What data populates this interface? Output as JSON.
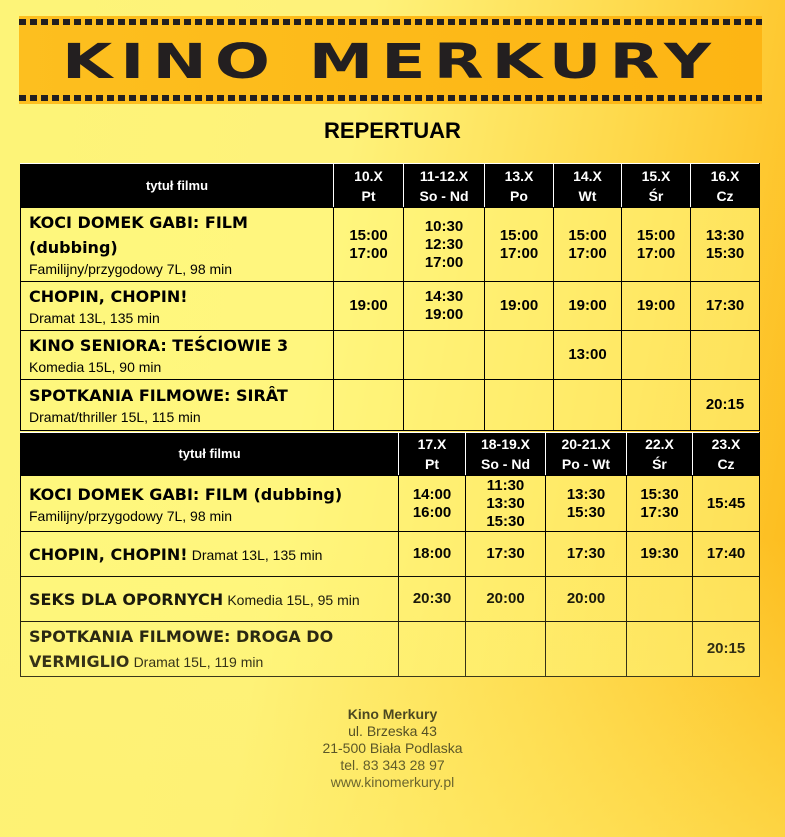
{
  "header": {
    "logo_text": "KINO MERKURY",
    "title": "REPERTUAR"
  },
  "colors": {
    "banner": "#fdb514",
    "header_bg": "#000000",
    "cell_bg": "#fff68a"
  },
  "tables": [
    {
      "title_header": "tytuł filmu",
      "days": [
        {
          "date": "10.X",
          "day": "Pt"
        },
        {
          "date": "11-12.X",
          "day": "So - Nd"
        },
        {
          "date": "13.X",
          "day": "Po"
        },
        {
          "date": "14.X",
          "day": "Wt"
        },
        {
          "date": "15.X",
          "day": "Śr"
        },
        {
          "date": "16.X",
          "day": "Cz"
        }
      ],
      "rows": [
        {
          "title": "KOCI DOMEK GABI: FILM (dubbing)",
          "genre": "Familijny/przygodowy 7L, 98 min",
          "genre_newline": true,
          "times": [
            "15:00\n17:00",
            "10:30\n12:30\n17:00",
            "15:00\n17:00",
            "15:00\n17:00",
            "15:00\n17:00",
            "13:30\n15:30"
          ]
        },
        {
          "title": "CHOPIN, CHOPIN!",
          "genre": "Dramat 13L, 135 min",
          "genre_newline": true,
          "times": [
            "19:00",
            "14:30\n19:00",
            "19:00",
            "19:00",
            "19:00",
            "17:30"
          ]
        },
        {
          "title": "KINO SENIORA: TEŚCIOWIE 3",
          "genre": "Komedia 15L, 90 min",
          "genre_newline": true,
          "times": [
            "",
            "",
            "",
            "13:00",
            "",
            ""
          ]
        },
        {
          "title": "SPOTKANIA FILMOWE: SIRÂT",
          "genre": "Dramat/thriller 15L, 115 min",
          "genre_newline": false,
          "times": [
            "",
            "",
            "",
            "",
            "",
            "20:15"
          ]
        }
      ]
    },
    {
      "title_header": "tytuł filmu",
      "days": [
        {
          "date": "17.X",
          "day": "Pt"
        },
        {
          "date": "18-19.X",
          "day": "So - Nd"
        },
        {
          "date": "20-21.X",
          "day": "Po - Wt"
        },
        {
          "date": "22.X",
          "day": "Śr"
        },
        {
          "date": "23.X",
          "day": "Cz"
        }
      ],
      "rows": [
        {
          "title": "KOCI DOMEK GABI: FILM (dubbing)",
          "genre": "Familijny/przygodowy 7L, 98 min",
          "genre_newline": true,
          "times": [
            "14:00\n16:00",
            "11:30\n13:30\n15:30",
            "13:30\n15:30",
            "15:30\n17:30",
            "15:45"
          ]
        },
        {
          "title": "CHOPIN, CHOPIN!",
          "genre": "Dramat 13L, 135 min",
          "genre_newline": false,
          "times": [
            "18:00",
            "17:30",
            "17:30",
            "19:30",
            "17:40"
          ]
        },
        {
          "title": "SEKS DLA OPORNYCH",
          "genre": "Komedia 15L, 95 min",
          "genre_newline": false,
          "times": [
            "20:30",
            "20:00",
            "20:00",
            "",
            ""
          ]
        },
        {
          "title": "SPOTKANIA FILMOWE: DROGA DO VERMIGLIO",
          "genre": "Dramat 15L, 119 min",
          "genre_newline": false,
          "times": [
            "",
            "",
            "",
            "",
            "20:15"
          ]
        }
      ]
    }
  ],
  "footer": {
    "name": "Kino Merkury",
    "street": "ul. Brzeska 43",
    "city": "21-500 Biała Podlaska",
    "phone": "tel. 83 343 28 97",
    "web": "www.kinomerkury.pl"
  }
}
